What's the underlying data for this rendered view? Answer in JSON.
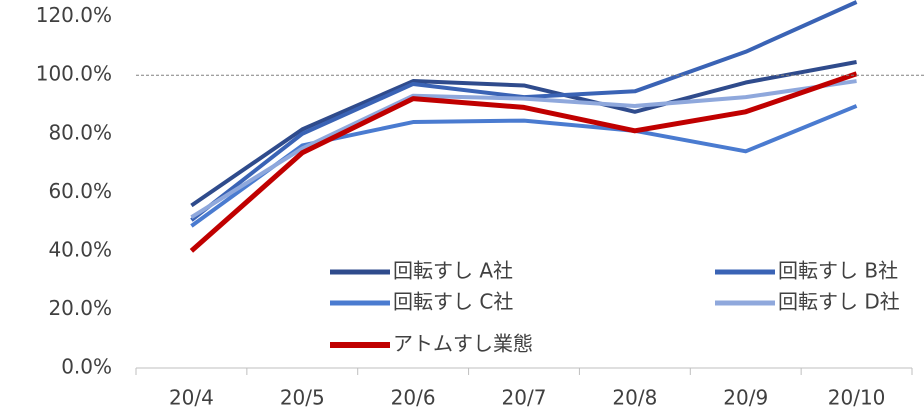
{
  "chart_data": {
    "type": "line",
    "categories": [
      "20/4",
      "20/5",
      "20/6",
      "20/7",
      "20/8",
      "20/9",
      "20/10"
    ],
    "series": [
      {
        "name": "回転すし A社",
        "color": "#2f4b8c",
        "values": [
          55.5,
          81.5,
          98,
          96.5,
          87.5,
          97.5,
          104.5
        ]
      },
      {
        "name": "回転すし B社",
        "color": "#3a63b5",
        "values": [
          50.5,
          80,
          97,
          92.5,
          94.5,
          108,
          125
        ]
      },
      {
        "name": "回転すし C社",
        "color": "#4a7bd0",
        "values": [
          48.5,
          76,
          84,
          84.5,
          81,
          74,
          89.5
        ]
      },
      {
        "name": "回転すし D社",
        "color": "#8fa8dc",
        "values": [
          51.5,
          75,
          93,
          92,
          89.5,
          92.5,
          98
        ]
      },
      {
        "name": "アトムすし業態",
        "color": "#c00000",
        "values": [
          40,
          73.5,
          92,
          89,
          81,
          87.5,
          100.5
        ]
      }
    ],
    "ylim": [
      0,
      125
    ],
    "yticks": [
      {
        "value": 0,
        "label": "0.0%"
      },
      {
        "value": 20,
        "label": "20.0%"
      },
      {
        "value": 40,
        "label": "40.0%"
      },
      {
        "value": 60,
        "label": "60.0%"
      },
      {
        "value": 80,
        "label": "80.0%"
      },
      {
        "value": 100,
        "label": "100.0%"
      },
      {
        "value": 120,
        "label": "120.0%"
      }
    ],
    "reference_line": 100
  }
}
